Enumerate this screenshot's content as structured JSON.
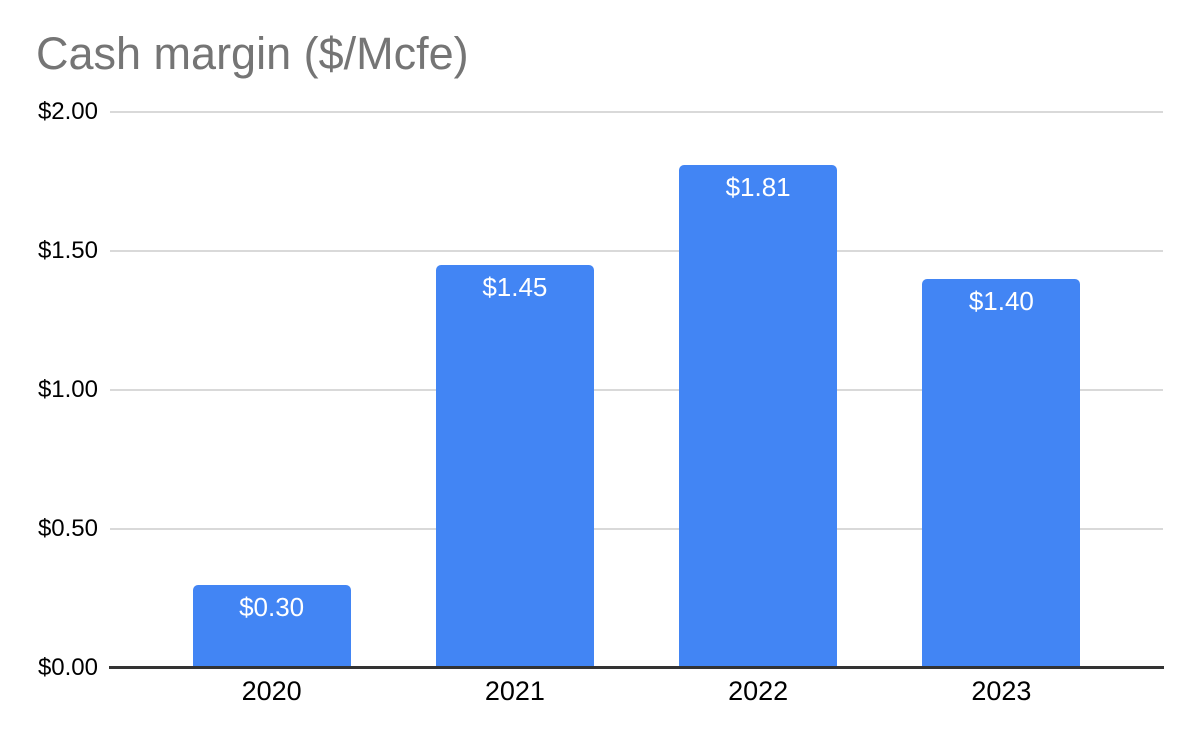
{
  "chart_data": {
    "type": "bar",
    "title": "Cash margin ($/Mcfe)",
    "categories": [
      "2020",
      "2021",
      "2022",
      "2023"
    ],
    "values": [
      0.3,
      1.45,
      1.81,
      1.4
    ],
    "bar_labels": [
      "$0.30",
      "$1.45",
      "$1.81",
      "$1.40"
    ],
    "y_ticks": [
      {
        "label": "$2.00",
        "value": 2.0
      },
      {
        "label": "$1.50",
        "value": 1.5
      },
      {
        "label": "$1.00",
        "value": 1.0
      },
      {
        "label": "$0.50",
        "value": 0.5
      },
      {
        "label": "$0.00",
        "value": 0.0
      }
    ],
    "ylim": [
      0,
      2.0
    ],
    "xlabel": "",
    "ylabel": "",
    "grid": true,
    "legend": "none",
    "colors": {
      "bar": "#4285f4",
      "bar_label": "#ffffff",
      "title": "#757575",
      "gridline": "#d9d9d9",
      "axis_line": "#333333",
      "tick_label": "#000000",
      "background": "#ffffff"
    }
  }
}
